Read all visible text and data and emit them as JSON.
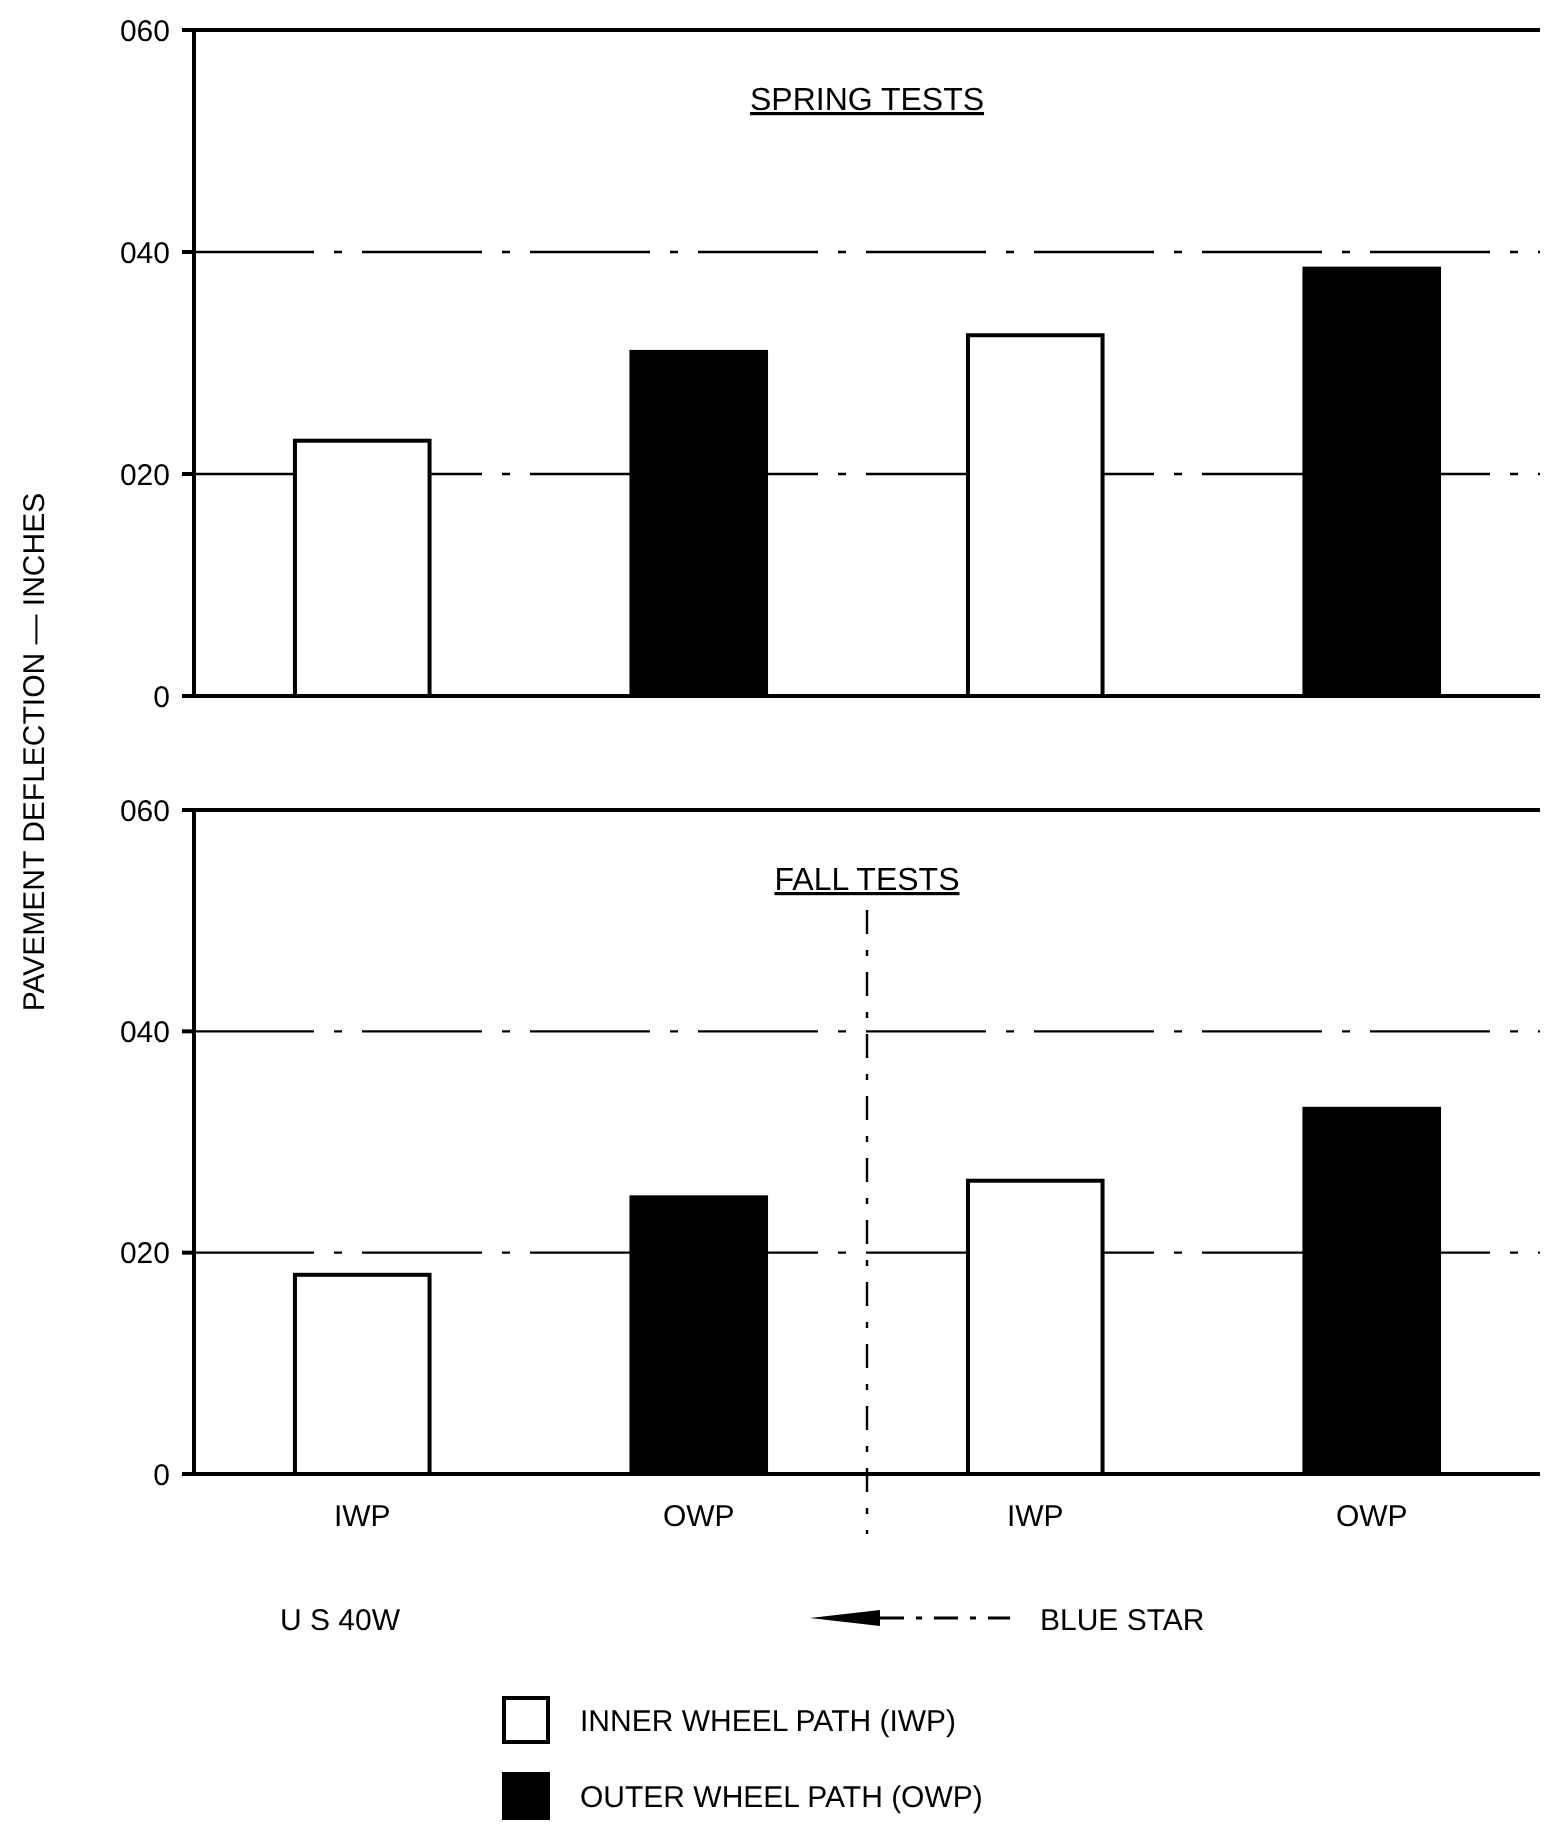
{
  "chart_data": [
    {
      "type": "bar",
      "title": "SPRING TESTS",
      "ylabel": "PAVEMENT DEFLECTION — INCHES",
      "categories": [
        null,
        null,
        null,
        null
      ],
      "ylim": [
        0,
        60
      ],
      "yticks": [
        0,
        {
          "value": 20,
          "label": "020"
        },
        {
          "value": 40,
          "label": "040"
        },
        {
          "value": 60,
          "label": "060"
        }
      ],
      "grid": "y",
      "series": [
        {
          "color": "#ffffff",
          "values": [
            23,
            null,
            32.5,
            null
          ]
        },
        {
          "color": "#000000",
          "values": [
            null,
            31,
            null,
            38.5
          ]
        }
      ]
    },
    {
      "type": "bar",
      "title": "FALL TESTS",
      "categories": [
        "IWP",
        "OWP",
        "IWP",
        "OWP"
      ],
      "ylim": [
        0,
        60
      ],
      "yticks": [
        0,
        {
          "value": 20,
          "label": "020"
        },
        {
          "value": 40,
          "label": "040"
        },
        {
          "value": 60,
          "label": "060"
        }
      ],
      "grid": "y",
      "legend": "bottom",
      "annotations": [
        "U S 40W",
        "BLUE STAR"
      ],
      "series": [
        {
          "name": "INNER WHEEL PATH (IWP)",
          "color": "#ffffff",
          "values": [
            18,
            null,
            26.5,
            null
          ]
        },
        {
          "name": "OUTER WHEEL PATH (OWP)",
          "color": "#000000",
          "values": [
            null,
            25,
            null,
            33
          ]
        }
      ]
    }
  ]
}
